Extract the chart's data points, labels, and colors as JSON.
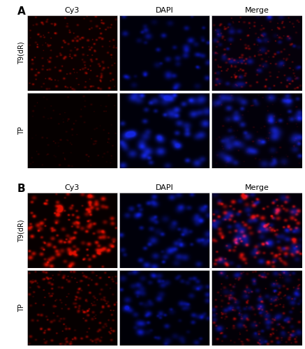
{
  "panel_A_label": "A",
  "panel_B_label": "B",
  "col_labels": [
    "Cy3",
    "DAPI",
    "Merge"
  ],
  "row_labels_A": [
    "T9(dR)",
    "TP"
  ],
  "row_labels_B": [
    "T9(dR)",
    "TP"
  ],
  "outer_bg": "#ffffff",
  "panel_label_fontsize": 11,
  "col_label_fontsize": 8,
  "row_label_fontsize": 7,
  "panels": {
    "A": {
      "rows": [
        {
          "Cy3": {
            "dot_color": [
              0.7,
              0.05,
              0.0
            ],
            "bg": [
              0.04,
              0.0,
              0.0
            ],
            "n_dots": 200,
            "sz_min": 1.0,
            "sz_max": 2.5,
            "intensity_min": 0.3,
            "intensity_max": 0.85
          },
          "DAPI": {
            "dot_color": [
              0.05,
              0.1,
              0.75
            ],
            "bg": [
              0.0,
              0.0,
              0.04
            ],
            "n_dots": 50,
            "sz_min": 3.0,
            "sz_max": 7.0,
            "intensity_min": 0.2,
            "intensity_max": 0.7
          },
          "Merge": {
            "red_color": [
              0.7,
              0.05,
              0.0
            ],
            "blue_color": [
              0.05,
              0.1,
              0.75
            ],
            "bg": [
              0.02,
              0.0,
              0.04
            ],
            "n_red": 180,
            "n_blue": 50,
            "red_sz_min": 1.0,
            "red_sz_max": 2.5,
            "blue_sz_min": 3.0,
            "blue_sz_max": 7.0,
            "red_int_min": 0.3,
            "red_int_max": 0.8,
            "blue_int_min": 0.15,
            "blue_int_max": 0.6
          }
        },
        {
          "Cy3": {
            "dot_color": [
              0.55,
              0.02,
              0.0
            ],
            "bg": [
              0.02,
              0.0,
              0.0
            ],
            "n_dots": 100,
            "sz_min": 0.8,
            "sz_max": 2.0,
            "intensity_min": 0.15,
            "intensity_max": 0.5
          },
          "DAPI": {
            "dot_color": [
              0.08,
              0.15,
              0.85
            ],
            "bg": [
              0.0,
              0.0,
              0.04
            ],
            "n_dots": 65,
            "sz_min": 4.0,
            "sz_max": 9.0,
            "intensity_min": 0.3,
            "intensity_max": 0.85
          },
          "Merge": {
            "red_color": [
              0.55,
              0.02,
              0.0
            ],
            "blue_color": [
              0.08,
              0.15,
              0.85
            ],
            "bg": [
              0.01,
              0.0,
              0.04
            ],
            "n_red": 80,
            "n_blue": 65,
            "red_sz_min": 0.8,
            "red_sz_max": 2.0,
            "blue_sz_min": 4.0,
            "blue_sz_max": 9.0,
            "red_int_min": 0.1,
            "red_int_max": 0.45,
            "blue_int_min": 0.25,
            "blue_int_max": 0.75
          }
        }
      ]
    },
    "B": {
      "rows": [
        {
          "Cy3": {
            "dot_color": [
              0.85,
              0.06,
              0.0
            ],
            "bg": [
              0.03,
              0.0,
              0.0
            ],
            "n_dots": 160,
            "sz_min": 2.0,
            "sz_max": 5.0,
            "intensity_min": 0.4,
            "intensity_max": 0.95
          },
          "DAPI": {
            "dot_color": [
              0.06,
              0.12,
              0.8
            ],
            "bg": [
              0.0,
              0.0,
              0.04
            ],
            "n_dots": 70,
            "sz_min": 3.5,
            "sz_max": 8.0,
            "intensity_min": 0.25,
            "intensity_max": 0.75
          },
          "Merge": {
            "red_color": [
              0.85,
              0.06,
              0.0
            ],
            "blue_color": [
              0.06,
              0.12,
              0.8
            ],
            "bg": [
              0.02,
              0.0,
              0.04
            ],
            "n_red": 140,
            "n_blue": 70,
            "red_sz_min": 2.0,
            "red_sz_max": 5.0,
            "blue_sz_min": 3.5,
            "blue_sz_max": 8.0,
            "red_int_min": 0.35,
            "red_int_max": 0.9,
            "blue_int_min": 0.2,
            "blue_int_max": 0.65
          }
        },
        {
          "Cy3": {
            "dot_color": [
              0.75,
              0.04,
              0.0
            ],
            "bg": [
              0.025,
              0.0,
              0.0
            ],
            "n_dots": 220,
            "sz_min": 1.2,
            "sz_max": 3.0,
            "intensity_min": 0.25,
            "intensity_max": 0.75
          },
          "DAPI": {
            "dot_color": [
              0.05,
              0.1,
              0.78
            ],
            "bg": [
              0.0,
              0.0,
              0.03
            ],
            "n_dots": 90,
            "sz_min": 3.0,
            "sz_max": 7.0,
            "intensity_min": 0.2,
            "intensity_max": 0.65
          },
          "Merge": {
            "red_color": [
              0.75,
              0.04,
              0.0
            ],
            "blue_color": [
              0.05,
              0.1,
              0.78
            ],
            "bg": [
              0.015,
              0.0,
              0.03
            ],
            "n_red": 200,
            "n_blue": 90,
            "red_sz_min": 1.2,
            "red_sz_max": 3.0,
            "blue_sz_min": 3.0,
            "blue_sz_max": 7.0,
            "red_int_min": 0.2,
            "red_int_max": 0.65,
            "blue_int_min": 0.15,
            "blue_int_max": 0.55
          }
        }
      ]
    }
  }
}
